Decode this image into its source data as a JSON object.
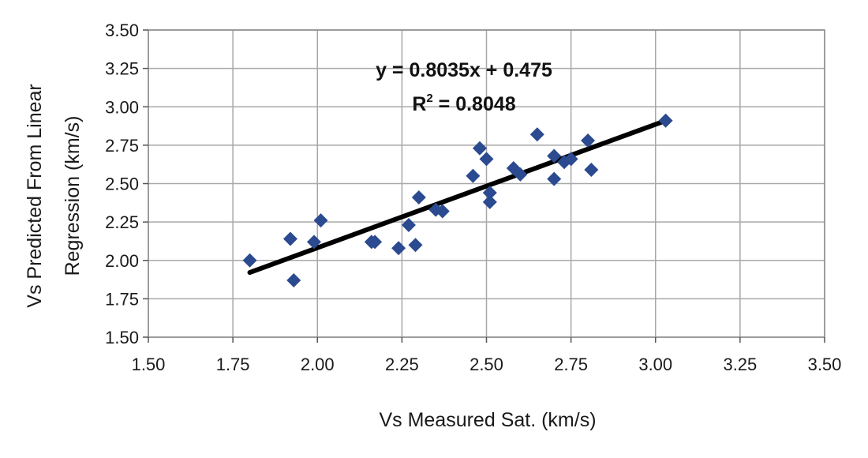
{
  "chart_data": {
    "type": "scatter",
    "title": "",
    "xlabel": "Vs Measured Sat. (km/s)",
    "ylabel": "Vs Predicted From Linear Regression (km/s)",
    "ylabel_lines": [
      "Vs Predicted From Linear",
      "Regression (km/s)"
    ],
    "xlim": [
      1.5,
      3.5
    ],
    "ylim": [
      1.5,
      3.5
    ],
    "xticks": [
      1.5,
      1.75,
      2.0,
      2.25,
      2.5,
      2.75,
      3.0,
      3.25,
      3.5
    ],
    "yticks": [
      1.5,
      1.75,
      2.0,
      2.25,
      2.5,
      2.75,
      3.0,
      3.25,
      3.5
    ],
    "xtick_labels": [
      "1.50",
      "1.75",
      "2.00",
      "2.25",
      "2.50",
      "2.75",
      "3.00",
      "3.25",
      "3.50"
    ],
    "ytick_labels": [
      "1.50",
      "1.75",
      "2.00",
      "2.25",
      "2.50",
      "2.75",
      "3.00",
      "3.25",
      "3.50"
    ],
    "grid": true,
    "marker": "diamond",
    "marker_color": "#2b4a8f",
    "line_color": "#000000",
    "points": [
      {
        "x": 1.8,
        "y": 2.0
      },
      {
        "x": 1.92,
        "y": 2.14
      },
      {
        "x": 1.93,
        "y": 1.87
      },
      {
        "x": 1.99,
        "y": 2.12
      },
      {
        "x": 2.01,
        "y": 2.26
      },
      {
        "x": 2.16,
        "y": 2.12
      },
      {
        "x": 2.17,
        "y": 2.12
      },
      {
        "x": 2.24,
        "y": 2.08
      },
      {
        "x": 2.27,
        "y": 2.23
      },
      {
        "x": 2.29,
        "y": 2.1
      },
      {
        "x": 2.3,
        "y": 2.41
      },
      {
        "x": 2.35,
        "y": 2.33
      },
      {
        "x": 2.37,
        "y": 2.32
      },
      {
        "x": 2.46,
        "y": 2.55
      },
      {
        "x": 2.48,
        "y": 2.73
      },
      {
        "x": 2.5,
        "y": 2.66
      },
      {
        "x": 2.51,
        "y": 2.44
      },
      {
        "x": 2.51,
        "y": 2.38
      },
      {
        "x": 2.58,
        "y": 2.6
      },
      {
        "x": 2.6,
        "y": 2.56
      },
      {
        "x": 2.65,
        "y": 2.82
      },
      {
        "x": 2.7,
        "y": 2.68
      },
      {
        "x": 2.7,
        "y": 2.53
      },
      {
        "x": 2.73,
        "y": 2.64
      },
      {
        "x": 2.75,
        "y": 2.66
      },
      {
        "x": 2.8,
        "y": 2.78
      },
      {
        "x": 2.81,
        "y": 2.59
      },
      {
        "x": 3.03,
        "y": 2.91
      }
    ],
    "trendline": {
      "slope": 0.8035,
      "intercept": 0.475,
      "x_range": [
        1.8,
        3.03
      ],
      "equation": "y = 0.8035x + 0.475",
      "r2_prefix": "R",
      "r2_superscript": "2",
      "r2_value": " = 0.8048"
    }
  }
}
